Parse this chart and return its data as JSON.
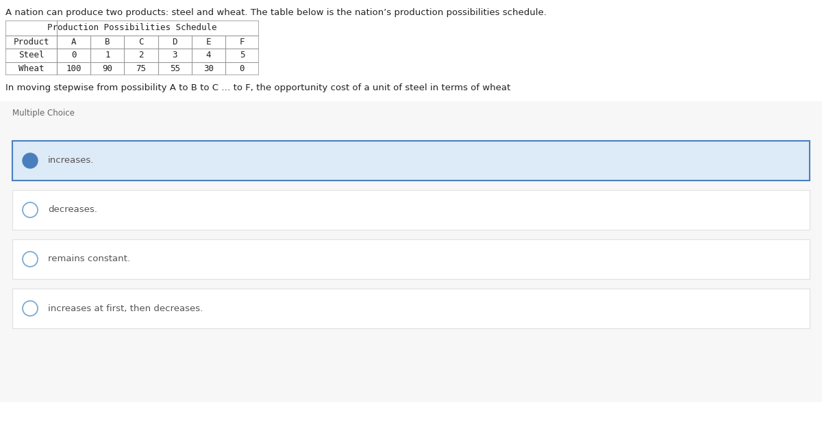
{
  "intro_text": "A nation can produce two products: steel and wheat. The table below is the nation’s production possibilities schedule.",
  "table_title": "Production Possibilities Schedule",
  "table_headers": [
    "Product",
    "A",
    "B",
    "C",
    "D",
    "E",
    "F"
  ],
  "table_rows": [
    [
      "Steel",
      "0",
      "1",
      "2",
      "3",
      "4",
      "5"
    ],
    [
      "Wheat",
      "100",
      "90",
      "75",
      "55",
      "30",
      "0"
    ]
  ],
  "question_text": "In moving stepwise from possibility A to B to C … to F, the opportunity cost of a unit of steel in terms of wheat",
  "section_label": "Multiple Choice",
  "choices": [
    {
      "text": "increases.",
      "selected": true
    },
    {
      "text": "decreases.",
      "selected": false
    },
    {
      "text": "remains constant.",
      "selected": false
    },
    {
      "text": "increases at first, then decreases.",
      "selected": false
    }
  ],
  "bg_color": "#f7f7f7",
  "white": "#ffffff",
  "selected_bg": "#ddeaf7",
  "selected_border": "#4a7fbd",
  "selected_dot_color": "#4a7fbd",
  "unselected_border": "#7aaad4",
  "choice_border_color": "#e0e0e0",
  "text_color": "#555555",
  "section_label_color": "#666666",
  "table_font": "monospace",
  "intro_fontsize": 9.5,
  "table_title_fontsize": 9.0,
  "table_data_fontsize": 9.0,
  "question_fontsize": 9.5,
  "choice_fontsize": 9.5,
  "section_fontsize": 8.5
}
